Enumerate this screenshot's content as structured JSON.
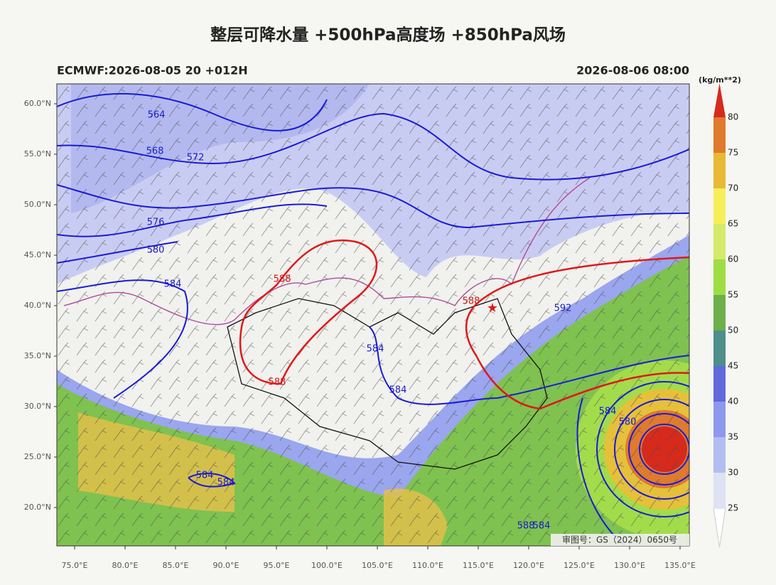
{
  "header": {
    "title": "整层可降水量 +500hPa高度场 +850hPa风场",
    "model_run": "ECMWF:2026-08-05 20 +012H",
    "valid_time": "2026-08-06 08:00"
  },
  "colorbar": {
    "unit": "(kg/m**2)",
    "ticks": [
      25,
      30,
      35,
      40,
      45,
      50,
      55,
      60,
      65,
      70,
      75,
      80
    ],
    "colors": [
      "#ffffff",
      "#dde2f4",
      "#b4bdf0",
      "#8e98ec",
      "#6268dc",
      "#4d8f8a",
      "#6bb04a",
      "#9fdd44",
      "#d4ea6c",
      "#f6ef5a",
      "#e8b934",
      "#e07a2c",
      "#d62a1c"
    ]
  },
  "map": {
    "lat_ticks": [
      {
        "value": 60,
        "label": "60.0°N"
      },
      {
        "value": 55,
        "label": "55.0°N"
      },
      {
        "value": 50,
        "label": "50.0°N"
      },
      {
        "value": 45,
        "label": "45.0°N"
      },
      {
        "value": 40,
        "label": "40.0°N"
      },
      {
        "value": 35,
        "label": "35.0°N"
      },
      {
        "value": 30,
        "label": "30.0°N"
      },
      {
        "value": 25,
        "label": "25.0°N"
      },
      {
        "value": 20,
        "label": "20.0°N"
      }
    ],
    "lon_ticks": [
      {
        "value": 75,
        "label": "75.0°E"
      },
      {
        "value": 80,
        "label": "80.0°E"
      },
      {
        "value": 85,
        "label": "85.0°E"
      },
      {
        "value": 90,
        "label": "90.0°E"
      },
      {
        "value": 95,
        "label": "95.0°E"
      },
      {
        "value": 100,
        "label": "100.0°E"
      },
      {
        "value": 105,
        "label": "105.0°E"
      },
      {
        "value": 110,
        "label": "110.0°E"
      },
      {
        "value": 115,
        "label": "115.0°E"
      },
      {
        "value": 120,
        "label": "120.0°E"
      },
      {
        "value": 125,
        "label": "125.0°E"
      },
      {
        "value": 130,
        "label": "130.0°E"
      },
      {
        "value": 135,
        "label": "135.0°E"
      }
    ],
    "contour_labels": [
      "564",
      "568",
      "572",
      "576",
      "580",
      "584",
      "588",
      "588",
      "584",
      "584",
      "588",
      "592",
      "584",
      "580",
      "584",
      "584",
      "584",
      "588"
    ],
    "stamp": "审图号：GS（2024）0650号"
  }
}
